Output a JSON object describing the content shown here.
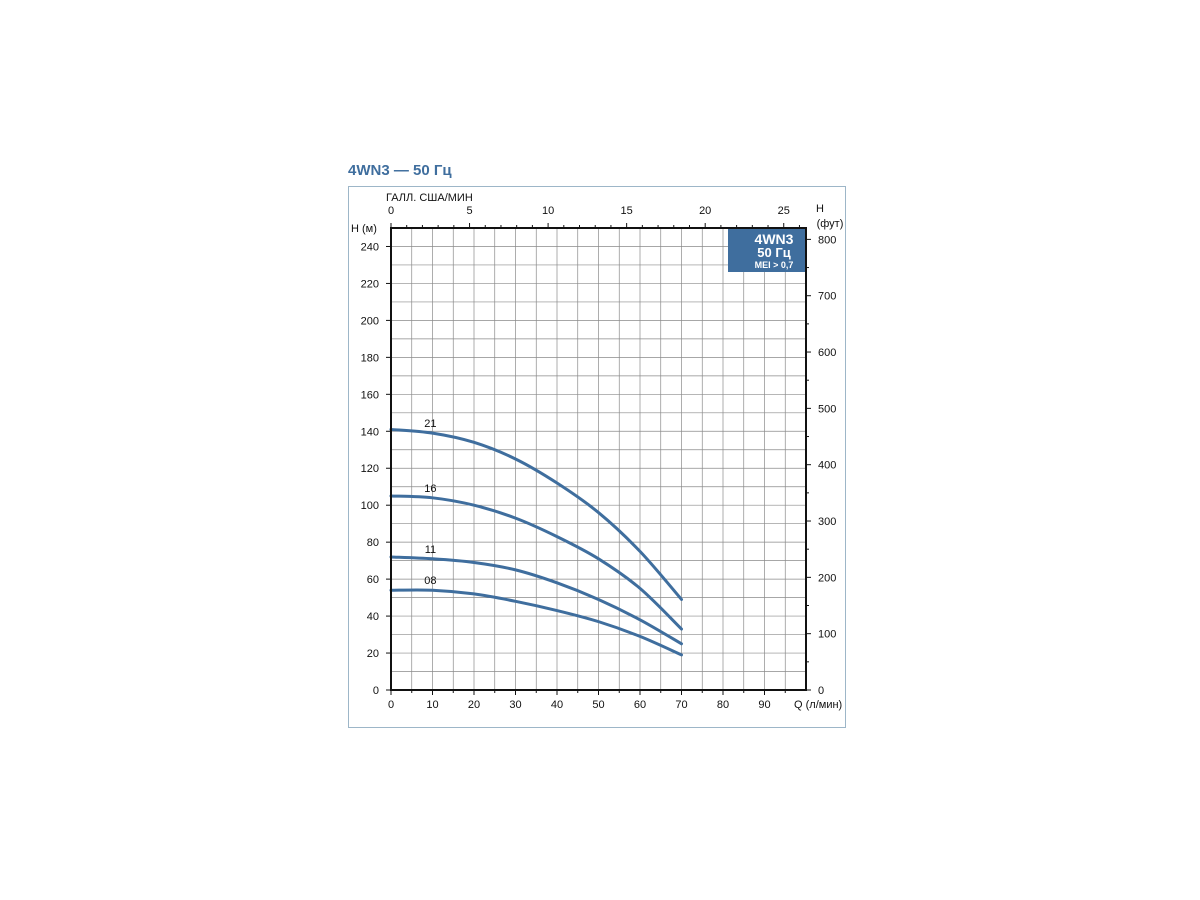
{
  "title": "4WN3 — 50 Гц",
  "badge": {
    "line1": "4WN3",
    "line2": "50 Гц",
    "line3": "MEI > 0,7",
    "color": "#3f6e9e"
  },
  "colors": {
    "curve": "#3f6e9e",
    "grid": "#8a8a8a",
    "frame": "#9db6c8"
  },
  "chart_data": {
    "type": "line",
    "title": "4WN3 — 50 Гц",
    "xlabel": "Q (л/мин)",
    "x2label": "ГАЛЛ. США/МИН",
    "ylabel": "H (м)",
    "y2label_line1": "H",
    "y2label_line2": "(фут)",
    "xlim": [
      0,
      100
    ],
    "ylim": [
      0,
      250
    ],
    "x_ticks": [
      0,
      10,
      20,
      30,
      40,
      50,
      60,
      70,
      80,
      90
    ],
    "y_ticks": [
      0,
      20,
      40,
      60,
      80,
      100,
      120,
      140,
      160,
      180,
      200,
      220,
      240
    ],
    "x2_ticks": [
      0,
      5,
      10,
      15,
      20,
      25
    ],
    "y2_ticks": [
      0,
      100,
      200,
      300,
      400,
      500,
      600,
      700,
      800
    ],
    "grid": true,
    "series": [
      {
        "name": "21",
        "x": [
          0,
          10,
          20,
          30,
          40,
          50,
          60,
          70
        ],
        "y": [
          141,
          139,
          134,
          125,
          112,
          96,
          75,
          49
        ]
      },
      {
        "name": "16",
        "x": [
          0,
          10,
          20,
          30,
          40,
          50,
          60,
          70
        ],
        "y": [
          105,
          104,
          100,
          93,
          83,
          71,
          55,
          33
        ]
      },
      {
        "name": "11",
        "x": [
          0,
          10,
          20,
          30,
          40,
          50,
          60,
          70
        ],
        "y": [
          72,
          71,
          69,
          65,
          58,
          49,
          38,
          25
        ]
      },
      {
        "name": "08",
        "x": [
          0,
          10,
          20,
          30,
          40,
          50,
          60,
          70
        ],
        "y": [
          54,
          54,
          52,
          48,
          43,
          37,
          29,
          19
        ]
      }
    ]
  }
}
